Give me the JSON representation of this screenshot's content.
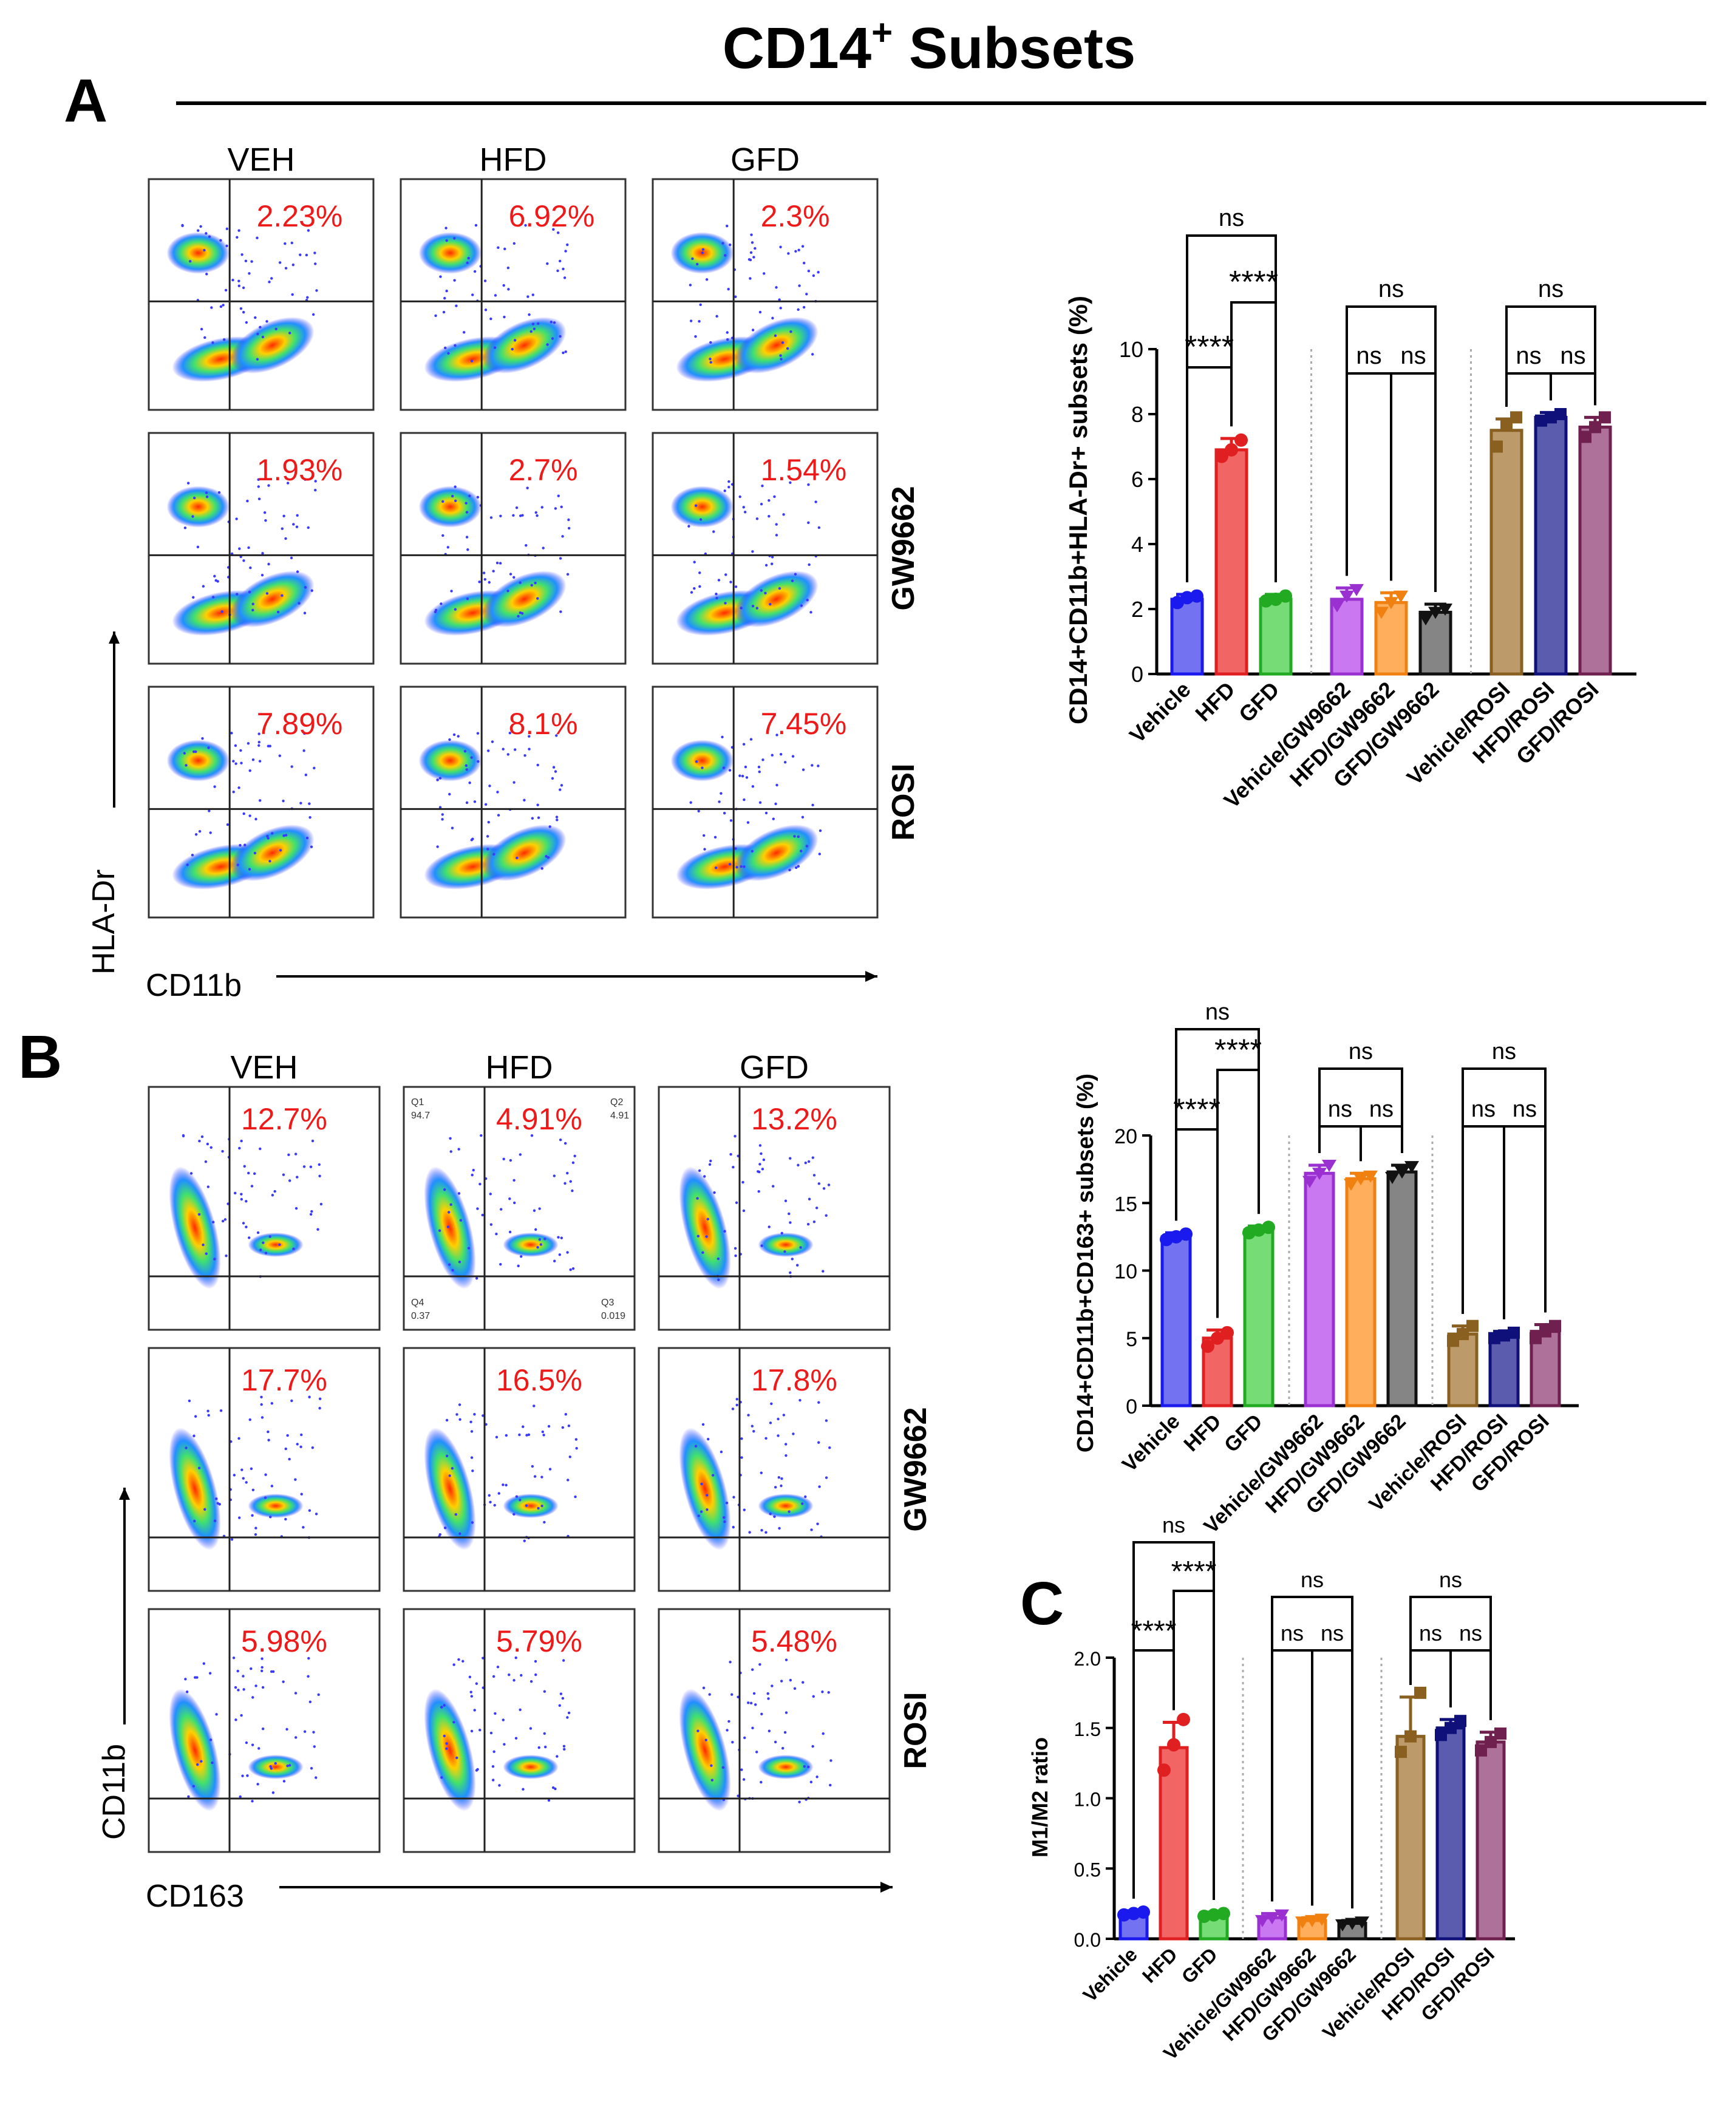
{
  "title": "CD14",
  "title_sup": "+",
  "title_rest": " Subsets",
  "panel_labels": [
    "A",
    "B",
    "C"
  ],
  "conditions": [
    "Vehicle",
    "HFD",
    "GFD",
    "Vehicle/GW9662",
    "HFD/GW9662",
    "GFD/GW9662",
    "Vehicle/ROSI",
    "HFD/ROSI",
    "GFD/ROSI"
  ],
  "colors": [
    "#5b5bf0",
    "#f04a4a",
    "#5ed65e",
    "#c060f0",
    "#ffa040",
    "#707070",
    "#b08850",
    "#4040a0",
    "#a05888"
  ],
  "edge_colors": [
    "#1a1aee",
    "#e02020",
    "#22aa22",
    "#9a30d0",
    "#f08010",
    "#111111",
    "#8a6020",
    "#10107a",
    "#70204f"
  ],
  "flow_A": {
    "col_labels": [
      "VEH",
      "HFD",
      "GFD"
    ],
    "row_labels": [
      "",
      "GW9662",
      "ROSI"
    ],
    "percents": [
      [
        "2.23%",
        "6.92%",
        "2.3%"
      ],
      [
        "1.93%",
        "2.7%",
        "1.54%"
      ],
      [
        "7.89%",
        "8.1%",
        "7.45%"
      ]
    ],
    "x_axis": "CD11b",
    "y_axis": "HLA-Dr"
  },
  "flow_B": {
    "col_labels": [
      "VEH",
      "HFD",
      "GFD"
    ],
    "row_labels": [
      "",
      "GW9662",
      "ROSI"
    ],
    "percents": [
      [
        "12.7%",
        "4.91%",
        "13.2%"
      ],
      [
        "17.7%",
        "16.5%",
        "17.8%"
      ],
      [
        "5.98%",
        "5.79%",
        "5.48%"
      ]
    ],
    "quadrant_values": {
      "q1": "Q1",
      "q1v": "94.7",
      "q2": "Q2",
      "q2v": "4.91",
      "q3": "Q3",
      "q3v": "0.019",
      "q4": "Q4",
      "q4v": "0.37"
    },
    "x_axis": "CD163",
    "y_axis": "CD11b"
  },
  "chart_data": [
    {
      "type": "bar",
      "panel": "A",
      "ylabel": "CD14+CD11b+HLA-Dr+ subsets (%)",
      "ylim": [
        0,
        10
      ],
      "yticks": [
        "0",
        "2",
        "4",
        "6",
        "8",
        "10"
      ],
      "categories": [
        "Vehicle",
        "HFD",
        "GFD",
        "Vehicle/GW9662",
        "HFD/GW9662",
        "GFD/GW9662",
        "Vehicle/ROSI",
        "HFD/ROSI",
        "GFD/ROSI"
      ],
      "values": [
        2.3,
        6.9,
        2.3,
        2.3,
        2.2,
        1.9,
        7.5,
        7.9,
        7.6
      ],
      "errors": [
        0.15,
        0.35,
        0.15,
        0.35,
        0.3,
        0.25,
        0.35,
        0.15,
        0.3
      ],
      "points": [
        [
          2.2,
          2.35,
          2.4
        ],
        [
          6.7,
          6.9,
          7.2
        ],
        [
          2.25,
          2.3,
          2.4
        ],
        [
          2.1,
          2.4,
          2.6
        ],
        [
          1.9,
          2.2,
          2.4
        ],
        [
          1.7,
          1.9,
          2.0
        ],
        [
          7.0,
          7.7,
          7.9
        ],
        [
          7.8,
          7.9,
          8.0
        ],
        [
          7.3,
          7.6,
          7.9
        ]
      ],
      "comparisons": [
        {
          "text": "ns",
          "a": 0,
          "b": 2
        },
        {
          "text": "****",
          "a": 1,
          "b": 2
        },
        {
          "text": "****",
          "a": 0,
          "b": 1
        },
        {
          "text": "ns",
          "a": 3,
          "b": 5
        },
        {
          "text": "ns",
          "a": 3,
          "b": 4
        },
        {
          "text": "ns",
          "a": 4,
          "b": 5
        },
        {
          "text": "ns",
          "a": 6,
          "b": 8
        },
        {
          "text": "ns",
          "a": 6,
          "b": 7
        },
        {
          "text": "ns",
          "a": 7,
          "b": 8
        }
      ]
    },
    {
      "type": "bar",
      "panel": "B",
      "ylabel": "CD14+CD11b+CD163+ subsets (%)",
      "ylim": [
        0,
        20
      ],
      "yticks": [
        "0",
        "5",
        "10",
        "15",
        "20"
      ],
      "categories": [
        "Vehicle",
        "HFD",
        "GFD",
        "Vehicle/GW9662",
        "HFD/GW9662",
        "GFD/GW9662",
        "Vehicle/ROSI",
        "HFD/ROSI",
        "GFD/ROSI"
      ],
      "values": [
        12.5,
        5.0,
        13.0,
        17.2,
        16.8,
        17.3,
        5.3,
        5.2,
        5.5
      ],
      "errors": [
        0.3,
        0.6,
        0.3,
        0.6,
        0.4,
        0.5,
        0.6,
        0.3,
        0.5
      ],
      "points": [
        [
          12.3,
          12.5,
          12.7
        ],
        [
          4.4,
          5.0,
          5.4
        ],
        [
          12.8,
          13.0,
          13.2
        ],
        [
          16.6,
          17.2,
          17.8
        ],
        [
          16.4,
          16.8,
          17.0
        ],
        [
          16.9,
          17.3,
          17.7
        ],
        [
          4.8,
          5.3,
          5.9
        ],
        [
          5.0,
          5.2,
          5.4
        ],
        [
          5.0,
          5.5,
          5.9
        ]
      ],
      "comparisons": [
        {
          "text": "ns",
          "a": 0,
          "b": 2
        },
        {
          "text": "****",
          "a": 1,
          "b": 2
        },
        {
          "text": "****",
          "a": 0,
          "b": 1
        },
        {
          "text": "ns",
          "a": 3,
          "b": 5
        },
        {
          "text": "ns",
          "a": 3,
          "b": 4
        },
        {
          "text": "ns",
          "a": 4,
          "b": 5
        },
        {
          "text": "ns",
          "a": 6,
          "b": 8
        },
        {
          "text": "ns",
          "a": 6,
          "b": 7
        },
        {
          "text": "ns",
          "a": 7,
          "b": 8
        }
      ]
    },
    {
      "type": "bar",
      "panel": "C",
      "ylabel": "M1/M2 ratio",
      "ylim": [
        0,
        2.0
      ],
      "yticks": [
        "0.0",
        "0.5",
        "1.0",
        "1.5",
        "2.0"
      ],
      "categories": [
        "Vehicle",
        "HFD",
        "GFD",
        "Vehicle/GW9662",
        "HFD/GW9662",
        "GFD/GW9662",
        "Vehicle/ROSI",
        "HFD/ROSI",
        "GFD/ROSI"
      ],
      "values": [
        0.18,
        1.36,
        0.17,
        0.15,
        0.13,
        0.11,
        1.44,
        1.5,
        1.4
      ],
      "errors": [
        0.02,
        0.18,
        0.02,
        0.03,
        0.02,
        0.02,
        0.28,
        0.06,
        0.07
      ],
      "points": [
        [
          0.17,
          0.18,
          0.19
        ],
        [
          1.2,
          1.38,
          1.56
        ],
        [
          0.16,
          0.17,
          0.18
        ],
        [
          0.13,
          0.15,
          0.17
        ],
        [
          0.12,
          0.13,
          0.14
        ],
        [
          0.1,
          0.11,
          0.12
        ],
        [
          1.33,
          1.44,
          1.75
        ],
        [
          1.45,
          1.5,
          1.55
        ],
        [
          1.34,
          1.4,
          1.46
        ]
      ],
      "comparisons": [
        {
          "text": "ns",
          "a": 0,
          "b": 2
        },
        {
          "text": "****",
          "a": 1,
          "b": 2
        },
        {
          "text": "****",
          "a": 0,
          "b": 1
        },
        {
          "text": "ns",
          "a": 3,
          "b": 5
        },
        {
          "text": "ns",
          "a": 3,
          "b": 4
        },
        {
          "text": "ns",
          "a": 4,
          "b": 5
        },
        {
          "text": "ns",
          "a": 6,
          "b": 8
        },
        {
          "text": "ns",
          "a": 6,
          "b": 7
        },
        {
          "text": "ns",
          "a": 7,
          "b": 8
        }
      ]
    }
  ]
}
